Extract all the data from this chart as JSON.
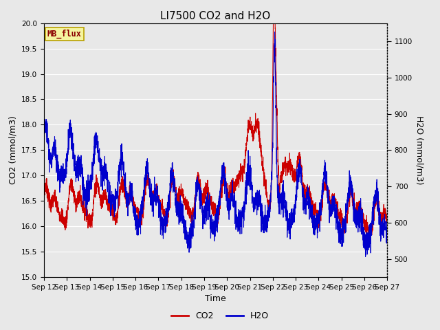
{
  "title": "LI7500 CO2 and H2O",
  "xlabel": "Time",
  "ylabel_left": "CO2 (mmol/m3)",
  "ylabel_right": "H2O (mmol/m3)",
  "watermark": "MB_flux",
  "ylim_left": [
    15.0,
    20.0
  ],
  "ylim_right": [
    450,
    1150
  ],
  "xtick_labels": [
    "Sep 12",
    "Sep 13",
    "Sep 14",
    "Sep 15",
    "Sep 16",
    "Sep 17",
    "Sep 18",
    "Sep 19",
    "Sep 20",
    "Sep 21",
    "Sep 22",
    "Sep 23",
    "Sep 24",
    "Sep 25",
    "Sep 26",
    "Sep 27"
  ],
  "co2_color": "#cc0000",
  "h2o_color": "#0000cc",
  "fig_facecolor": "#e8e8e8",
  "plot_facecolor": "#e8e8e8",
  "grid_color": "#ffffff",
  "title_fontsize": 11,
  "axis_fontsize": 9,
  "tick_fontsize": 7.5,
  "legend_fontsize": 9,
  "linewidth": 0.8,
  "n_points": 3000
}
